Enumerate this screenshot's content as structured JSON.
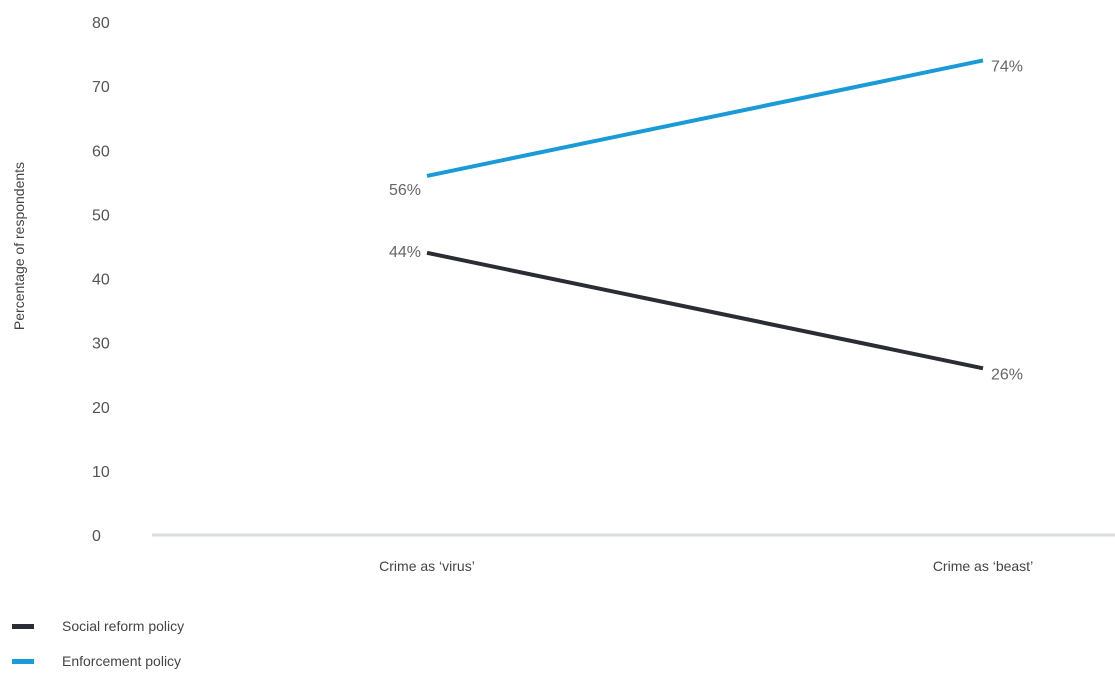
{
  "chart_data": {
    "type": "line",
    "categories": [
      "Crime as ‘virus’",
      "Crime as ‘beast’"
    ],
    "series": [
      {
        "name": "Social reform policy",
        "values": [
          44,
          26
        ],
        "labels": [
          "44%",
          "26%"
        ],
        "color": "#2b2d35"
      },
      {
        "name": "Enforcement policy",
        "values": [
          56,
          74
        ],
        "labels": [
          "56%",
          "74%"
        ],
        "color": "#1a9ad6"
      }
    ],
    "ylabel": "Percentage of respondents",
    "ylim": [
      0,
      80
    ],
    "yticks": [
      "0",
      "10",
      "20",
      "30",
      "40",
      "50",
      "60",
      "70",
      "80"
    ],
    "grid": false,
    "legend": "bottom-left",
    "axis_color": "#d6dde3"
  }
}
